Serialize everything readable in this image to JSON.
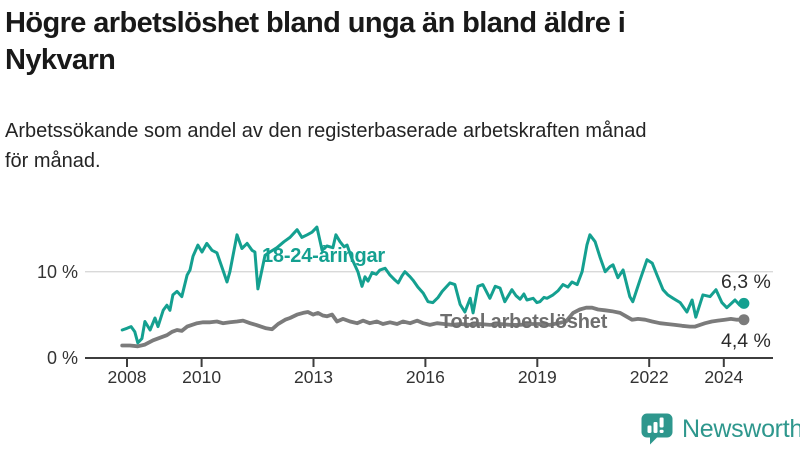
{
  "header": {
    "title_lines": [
      "Högre arbetslöshet bland unga än bland äldre i",
      "Nykvarn"
    ],
    "subtitle_lines": [
      "Arbetssökande som andel av den registerbaserade arbetskraften månad",
      "för månad."
    ]
  },
  "footer": {
    "brand": "Newsworthy"
  },
  "colors": {
    "young_teal": "#14a090",
    "total_gray": "#7b7b7b",
    "axis": "#3d3d3d",
    "grid": "#d9d9d9",
    "brand_teal": "#2e978d"
  },
  "chart_data": {
    "type": "line",
    "title": "Högre arbetslöshet bland unga än bland äldre i Nykvarn",
    "subtitle": "Arbetssökande som andel av den registerbaserade arbetskraften månad för månad.",
    "unit": "%",
    "xlim": [
      2007.8,
      2025.3
    ],
    "ylim": [
      0,
      16
    ],
    "grid": "horizontal-10-only",
    "legend_position": "inline-labels",
    "x_axis": {
      "ticks": [
        {
          "label": "2008",
          "year": 2008
        },
        {
          "label": "2010",
          "year": 2010
        },
        {
          "label": "2013",
          "year": 2013
        },
        {
          "label": "2016",
          "year": 2016
        },
        {
          "label": "2019",
          "year": 2019
        },
        {
          "label": "2022",
          "year": 2022
        },
        {
          "label": "2024",
          "year": 2024
        }
      ]
    },
    "y_axis": {
      "ticks": [
        {
          "label": "0 %",
          "value": 0
        },
        {
          "label": "10 %",
          "value": 10
        }
      ]
    },
    "series": [
      {
        "name": "18-24-åringar",
        "color": "#14a090",
        "line_width": 3,
        "end_label": "6,3 %",
        "end_value": 6.3,
        "points": [
          [
            2007.87,
            3.2
          ],
          [
            2008.0,
            3.4
          ],
          [
            2008.11,
            3.6
          ],
          [
            2008.21,
            3.0
          ],
          [
            2008.29,
            1.7
          ],
          [
            2008.4,
            2.2
          ],
          [
            2008.48,
            4.2
          ],
          [
            2008.62,
            3.2
          ],
          [
            2008.75,
            4.6
          ],
          [
            2008.83,
            3.6
          ],
          [
            2008.97,
            5.5
          ],
          [
            2009.07,
            6.1
          ],
          [
            2009.15,
            5.5
          ],
          [
            2009.23,
            7.3
          ],
          [
            2009.34,
            7.7
          ],
          [
            2009.47,
            7.1
          ],
          [
            2009.61,
            9.6
          ],
          [
            2009.69,
            10.2
          ],
          [
            2009.77,
            11.8
          ],
          [
            2009.9,
            13.1
          ],
          [
            2010.01,
            12.3
          ],
          [
            2010.14,
            13.3
          ],
          [
            2010.28,
            12.5
          ],
          [
            2010.41,
            12.2
          ],
          [
            2010.57,
            10.2
          ],
          [
            2010.68,
            8.8
          ],
          [
            2010.76,
            10.0
          ],
          [
            2010.95,
            14.3
          ],
          [
            2011.08,
            12.7
          ],
          [
            2011.22,
            13.3
          ],
          [
            2011.35,
            12.5
          ],
          [
            2011.43,
            12.3
          ],
          [
            2011.51,
            8.0
          ],
          [
            2011.7,
            11.9
          ],
          [
            2011.83,
            12.3
          ],
          [
            2012.02,
            12.8
          ],
          [
            2012.21,
            13.5
          ],
          [
            2012.37,
            14.0
          ],
          [
            2012.56,
            14.9
          ],
          [
            2012.69,
            14.0
          ],
          [
            2012.83,
            14.3
          ],
          [
            2012.96,
            14.6
          ],
          [
            2013.09,
            15.2
          ],
          [
            2013.23,
            12.5
          ],
          [
            2013.36,
            13.0
          ],
          [
            2013.52,
            12.8
          ],
          [
            2013.6,
            14.3
          ],
          [
            2013.71,
            13.5
          ],
          [
            2013.82,
            12.9
          ],
          [
            2013.9,
            13.1
          ],
          [
            2014.03,
            11.5
          ],
          [
            2014.19,
            10.0
          ],
          [
            2014.3,
            8.3
          ],
          [
            2014.38,
            9.4
          ],
          [
            2014.46,
            8.9
          ],
          [
            2014.57,
            9.9
          ],
          [
            2014.68,
            9.7
          ],
          [
            2014.78,
            10.2
          ],
          [
            2014.92,
            10.4
          ],
          [
            2015.05,
            9.6
          ],
          [
            2015.19,
            9.0
          ],
          [
            2015.27,
            8.7
          ],
          [
            2015.37,
            9.5
          ],
          [
            2015.45,
            10.0
          ],
          [
            2015.59,
            9.4
          ],
          [
            2015.67,
            9.0
          ],
          [
            2015.8,
            8.2
          ],
          [
            2015.94,
            7.5
          ],
          [
            2016.07,
            6.5
          ],
          [
            2016.2,
            6.4
          ],
          [
            2016.34,
            7.0
          ],
          [
            2016.45,
            7.7
          ],
          [
            2016.66,
            8.7
          ],
          [
            2016.79,
            8.5
          ],
          [
            2016.93,
            6.2
          ],
          [
            2017.06,
            5.3
          ],
          [
            2017.2,
            6.9
          ],
          [
            2017.28,
            5.2
          ],
          [
            2017.41,
            8.3
          ],
          [
            2017.54,
            8.5
          ],
          [
            2017.73,
            6.9
          ],
          [
            2017.87,
            8.3
          ],
          [
            2018.0,
            8.1
          ],
          [
            2018.13,
            6.5
          ],
          [
            2018.32,
            7.9
          ],
          [
            2018.43,
            7.2
          ],
          [
            2018.54,
            6.8
          ],
          [
            2018.64,
            7.4
          ],
          [
            2018.72,
            6.7
          ],
          [
            2018.89,
            6.9
          ],
          [
            2018.99,
            6.4
          ],
          [
            2019.07,
            6.5
          ],
          [
            2019.18,
            7.0
          ],
          [
            2019.26,
            6.9
          ],
          [
            2019.42,
            7.3
          ],
          [
            2019.56,
            7.8
          ],
          [
            2019.69,
            8.5
          ],
          [
            2019.82,
            8.2
          ],
          [
            2019.93,
            8.8
          ],
          [
            2020.07,
            8.5
          ],
          [
            2020.2,
            10.0
          ],
          [
            2020.33,
            13.1
          ],
          [
            2020.41,
            14.3
          ],
          [
            2020.55,
            13.5
          ],
          [
            2020.68,
            11.7
          ],
          [
            2020.82,
            10.0
          ],
          [
            2020.95,
            10.6
          ],
          [
            2021.03,
            10.8
          ],
          [
            2021.16,
            9.3
          ],
          [
            2021.3,
            10.2
          ],
          [
            2021.48,
            7.1
          ],
          [
            2021.56,
            6.5
          ],
          [
            2021.75,
            9.0
          ],
          [
            2021.94,
            11.4
          ],
          [
            2022.08,
            11.0
          ],
          [
            2022.21,
            9.6
          ],
          [
            2022.37,
            7.9
          ],
          [
            2022.5,
            7.3
          ],
          [
            2022.64,
            6.9
          ],
          [
            2022.83,
            6.4
          ],
          [
            2023.01,
            5.3
          ],
          [
            2023.15,
            6.7
          ],
          [
            2023.25,
            4.7
          ],
          [
            2023.44,
            7.3
          ],
          [
            2023.63,
            7.1
          ],
          [
            2023.79,
            7.9
          ],
          [
            2023.95,
            6.4
          ],
          [
            2024.08,
            5.8
          ],
          [
            2024.3,
            6.7
          ],
          [
            2024.43,
            6.1
          ],
          [
            2024.54,
            6.3
          ]
        ]
      },
      {
        "name": "Total arbetslöshet",
        "color": "#7b7b7b",
        "line_width": 3.8,
        "end_label": "4,4 %",
        "end_value": 4.4,
        "points": [
          [
            2007.87,
            1.4
          ],
          [
            2008.08,
            1.4
          ],
          [
            2008.29,
            1.3
          ],
          [
            2008.48,
            1.5
          ],
          [
            2008.7,
            2.0
          ],
          [
            2008.88,
            2.3
          ],
          [
            2009.07,
            2.6
          ],
          [
            2009.21,
            3.0
          ],
          [
            2009.34,
            3.2
          ],
          [
            2009.47,
            3.1
          ],
          [
            2009.61,
            3.6
          ],
          [
            2009.74,
            3.8
          ],
          [
            2009.88,
            4.0
          ],
          [
            2010.04,
            4.1
          ],
          [
            2010.23,
            4.1
          ],
          [
            2010.41,
            4.2
          ],
          [
            2010.57,
            4.0
          ],
          [
            2010.76,
            4.1
          ],
          [
            2010.95,
            4.2
          ],
          [
            2011.11,
            4.3
          ],
          [
            2011.3,
            4.0
          ],
          [
            2011.46,
            3.8
          ],
          [
            2011.59,
            3.6
          ],
          [
            2011.73,
            3.4
          ],
          [
            2011.89,
            3.3
          ],
          [
            2012.05,
            3.9
          ],
          [
            2012.24,
            4.4
          ],
          [
            2012.37,
            4.6
          ],
          [
            2012.56,
            5.0
          ],
          [
            2012.72,
            5.2
          ],
          [
            2012.85,
            5.3
          ],
          [
            2012.99,
            5.0
          ],
          [
            2013.12,
            5.2
          ],
          [
            2013.25,
            4.9
          ],
          [
            2013.36,
            4.8
          ],
          [
            2013.5,
            5.0
          ],
          [
            2013.63,
            4.2
          ],
          [
            2013.79,
            4.5
          ],
          [
            2013.98,
            4.2
          ],
          [
            2014.17,
            4.0
          ],
          [
            2014.33,
            4.3
          ],
          [
            2014.51,
            4.0
          ],
          [
            2014.7,
            4.2
          ],
          [
            2014.86,
            3.9
          ],
          [
            2015.05,
            4.1
          ],
          [
            2015.24,
            3.9
          ],
          [
            2015.4,
            4.2
          ],
          [
            2015.59,
            4.0
          ],
          [
            2015.78,
            4.3
          ],
          [
            2015.94,
            4.0
          ],
          [
            2016.12,
            3.8
          ],
          [
            2016.31,
            4.0
          ],
          [
            2016.5,
            3.9
          ],
          [
            2016.71,
            3.8
          ],
          [
            2016.93,
            3.9
          ],
          [
            2017.2,
            3.8
          ],
          [
            2017.46,
            3.9
          ],
          [
            2017.73,
            3.8
          ],
          [
            2018.0,
            3.9
          ],
          [
            2018.27,
            3.8
          ],
          [
            2018.54,
            3.8
          ],
          [
            2018.81,
            3.9
          ],
          [
            2019.07,
            3.9
          ],
          [
            2019.34,
            3.8
          ],
          [
            2019.56,
            4.0
          ],
          [
            2019.77,
            4.2
          ],
          [
            2019.96,
            5.2
          ],
          [
            2020.14,
            5.6
          ],
          [
            2020.31,
            5.8
          ],
          [
            2020.47,
            5.8
          ],
          [
            2020.63,
            5.6
          ],
          [
            2020.82,
            5.5
          ],
          [
            2021.0,
            5.4
          ],
          [
            2021.22,
            5.2
          ],
          [
            2021.38,
            4.8
          ],
          [
            2021.54,
            4.4
          ],
          [
            2021.7,
            4.5
          ],
          [
            2021.89,
            4.4
          ],
          [
            2022.08,
            4.2
          ],
          [
            2022.29,
            4.0
          ],
          [
            2022.48,
            3.9
          ],
          [
            2022.69,
            3.8
          ],
          [
            2022.88,
            3.7
          ],
          [
            2023.09,
            3.6
          ],
          [
            2023.23,
            3.6
          ],
          [
            2023.36,
            3.8
          ],
          [
            2023.5,
            4.0
          ],
          [
            2023.68,
            4.2
          ],
          [
            2023.84,
            4.3
          ],
          [
            2024.03,
            4.4
          ],
          [
            2024.19,
            4.5
          ],
          [
            2024.35,
            4.4
          ],
          [
            2024.54,
            4.4
          ]
        ]
      }
    ]
  }
}
